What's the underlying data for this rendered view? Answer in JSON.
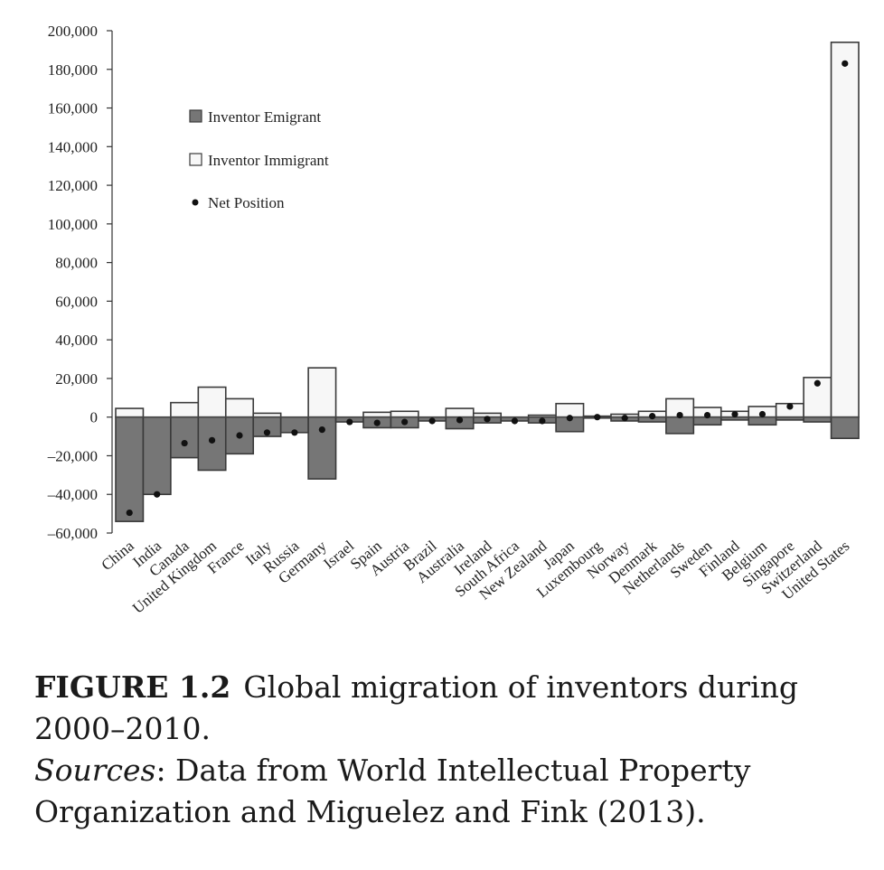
{
  "chart_data": {
    "type": "bar",
    "categories": [
      "China",
      "India",
      "Canada",
      "United Kingdom",
      "France",
      "Italy",
      "Russia",
      "Germany",
      "Israel",
      "Spain",
      "Austria",
      "Brazil",
      "Australia",
      "Ireland",
      "South Africa",
      "New Zealand",
      "Japan",
      "Luxembourg",
      "Norway",
      "Denmark",
      "Netherlands",
      "Sweden",
      "Finland",
      "Belgium",
      "Singapore",
      "Switzerland",
      "United States"
    ],
    "series": [
      {
        "name": "Inventor Emigrant",
        "values": [
          -54000,
          -40000,
          -21000,
          -27500,
          -19000,
          -10000,
          -8000,
          -32000,
          -2500,
          -5500,
          -5500,
          -2000,
          -6000,
          -3000,
          -2000,
          -3000,
          -7500,
          -500,
          -2000,
          -2500,
          -8500,
          -4000,
          -1500,
          -4000,
          -1500,
          -2500,
          -11000
        ]
      },
      {
        "name": "Inventor Immigrant",
        "values": [
          4500,
          0,
          7500,
          15500,
          9500,
          2000,
          0,
          25500,
          0,
          2500,
          3000,
          0,
          4500,
          2000,
          0,
          1000,
          7000,
          500,
          1500,
          3000,
          9500,
          5000,
          3000,
          5500,
          7000,
          20500,
          194000
        ]
      },
      {
        "name": "Net Position",
        "values": [
          -49500,
          -40000,
          -13500,
          -12000,
          -9500,
          -8000,
          -8000,
          -6500,
          -2500,
          -3000,
          -2500,
          -2000,
          -1500,
          -1000,
          -2000,
          -2000,
          -500,
          0,
          -500,
          500,
          1000,
          1000,
          1500,
          1500,
          5500,
          17500,
          183000
        ]
      }
    ],
    "ylim": [
      -60000,
      200000
    ],
    "yticks": [
      "200,000",
      "180,000",
      "160,000",
      "140,000",
      "120,000",
      "100,000",
      "80,000",
      "60,000",
      "40,000",
      "20,000",
      "0",
      "–20,000",
      "–40,000",
      "–60,000"
    ],
    "ytick_values": [
      200000,
      180000,
      160000,
      140000,
      120000,
      100000,
      80000,
      60000,
      40000,
      20000,
      0,
      -20000,
      -40000,
      -60000
    ],
    "legend": {
      "placement": "top-left",
      "items": [
        "Inventor Emigrant",
        "Inventor Immigrant",
        "Net Position"
      ]
    },
    "colors": {
      "emigrant": "#767676",
      "immigrant": "#f7f7f7",
      "edge": "#3a3a3a",
      "net": "#111111"
    },
    "grid": false
  },
  "caption": {
    "figure_label": "FIGURE 1.2",
    "title": "Global migration of inventors during 2000–2010.",
    "sources_label": "Sources",
    "sources_text": ": Data from World Intellectual Property Organization and Miguelez and Fink (2013)."
  }
}
